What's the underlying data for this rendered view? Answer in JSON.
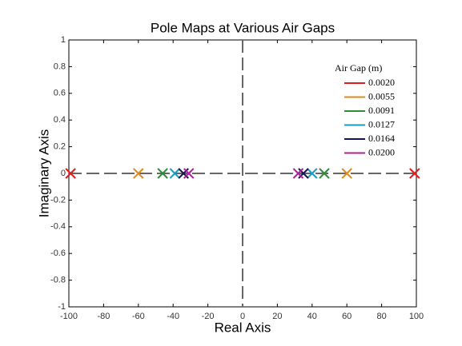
{
  "chart_data": {
    "type": "scatter",
    "title": "Pole Maps at Various Air Gaps",
    "x_label": "Real Axis",
    "y_label": "Imaginary Axis",
    "xlim": [
      -100,
      100
    ],
    "xticks": [
      -100,
      -80,
      -60,
      -40,
      -20,
      0,
      20,
      40,
      60,
      80,
      100
    ],
    "ylim": [
      -1,
      1
    ],
    "yticks": [
      -1,
      -0.8,
      -0.6,
      -0.4,
      -0.2,
      0,
      0.2,
      0.4,
      0.6,
      0.8,
      1
    ],
    "legend_title": "Air Gap (m)",
    "legend_position": "upper right",
    "series": [
      {
        "name": "0.0020",
        "color": "#e41a1c",
        "x": [
          -99,
          99
        ],
        "values": [
          0,
          0
        ]
      },
      {
        "name": "0.0055",
        "color": "#e08a1e",
        "x": [
          -60,
          60
        ],
        "values": [
          0,
          0
        ]
      },
      {
        "name": "0.0091",
        "color": "#2e8b3a",
        "x": [
          -46,
          47
        ],
        "values": [
          0,
          0
        ]
      },
      {
        "name": "0.0127",
        "color": "#1a9bc4",
        "x": [
          -39,
          40
        ],
        "values": [
          0,
          0
        ]
      },
      {
        "name": "0.0164",
        "color": "#141450",
        "x": [
          -34,
          35
        ],
        "values": [
          0,
          0
        ]
      },
      {
        "name": "0.0200",
        "color": "#b0209a",
        "x": [
          -31,
          32
        ],
        "values": [
          0,
          0
        ]
      }
    ]
  }
}
